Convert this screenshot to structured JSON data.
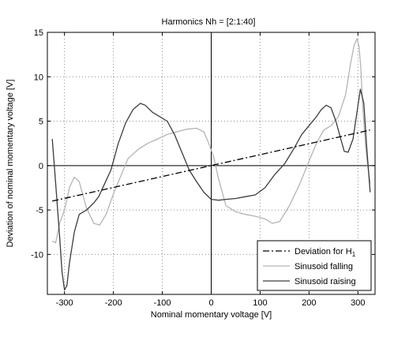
{
  "chart_data": {
    "type": "line",
    "title": "Harmonics Nh = [2:1:40]",
    "xlabel": "Nominal momentary voltage [V]",
    "ylabel": "Deviation of nominal momentary voltage [V]",
    "xlim": [
      -335,
      335
    ],
    "ylim": [
      -14.5,
      15
    ],
    "xticks": [
      -300,
      -200,
      -100,
      0,
      100,
      200,
      300
    ],
    "yticks": [
      -10,
      -5,
      0,
      5,
      10,
      15
    ],
    "grid": true,
    "legend_position": "bottom-right",
    "series": [
      {
        "name": "Deviation for H",
        "name_subscript": "1",
        "color": "#000000",
        "style": "dash-dot",
        "x": [
          -325,
          325
        ],
        "y": [
          -4,
          4
        ]
      },
      {
        "name": "Sinusoid falling",
        "color": "#b4b4b4",
        "style": "solid",
        "x": [
          -325,
          -318,
          -310,
          -300,
          -290,
          -280,
          -270,
          -255,
          -240,
          -228,
          -215,
          -200,
          -185,
          -170,
          -150,
          -130,
          -110,
          -90,
          -70,
          -50,
          -30,
          -15,
          -5,
          5,
          15,
          30,
          50,
          70,
          90,
          110,
          125,
          140,
          160,
          180,
          200,
          215,
          230,
          245,
          260,
          275,
          285,
          292,
          298,
          302,
          306,
          310,
          316,
          320,
          325
        ],
        "y": [
          -8.5,
          -8.7,
          -6.5,
          -5,
          -2.5,
          -1.3,
          -1.8,
          -4.8,
          -6.5,
          -6.7,
          -5.5,
          -3.2,
          -1.2,
          0.8,
          1.8,
          2.5,
          3,
          3.5,
          3.8,
          4.1,
          4.2,
          3.8,
          2.5,
          1,
          -1.5,
          -4.5,
          -5.2,
          -5.5,
          -5.7,
          -6,
          -6.5,
          -6.3,
          -4.5,
          -2.2,
          0.5,
          2.5,
          4,
          4.5,
          5.5,
          8,
          11.5,
          13.5,
          14.3,
          13.5,
          11,
          6.5,
          2,
          0,
          -2
        ]
      },
      {
        "name": "Sinusoid raising",
        "color": "#3c3c3c",
        "style": "solid",
        "x": [
          -325,
          -318,
          -310,
          -305,
          -300,
          -295,
          -290,
          -280,
          -270,
          -255,
          -240,
          -230,
          -220,
          -205,
          -190,
          -175,
          -160,
          -145,
          -135,
          -120,
          -105,
          -90,
          -75,
          -60,
          -45,
          -30,
          -15,
          0,
          15,
          30,
          50,
          70,
          90,
          110,
          130,
          150,
          170,
          185,
          200,
          215,
          225,
          235,
          245,
          255,
          265,
          272,
          280,
          290,
          298,
          305,
          312,
          318,
          325
        ],
        "y": [
          3,
          -2,
          -8,
          -12,
          -14,
          -13.5,
          -11,
          -7.5,
          -5.5,
          -5,
          -4.2,
          -3.5,
          -2.3,
          -0.5,
          2.5,
          4.8,
          6.3,
          7,
          6.8,
          6,
          5.5,
          5,
          3.5,
          1.5,
          -0.5,
          -1.8,
          -3,
          -3.8,
          -3.9,
          -3.8,
          -3.7,
          -3.5,
          -3.3,
          -2.5,
          -1,
          0.2,
          2,
          3.5,
          4.5,
          5.5,
          6.3,
          6.8,
          6.5,
          5,
          3,
          1.6,
          1.5,
          3,
          6,
          8.6,
          7,
          2,
          -3
        ]
      }
    ]
  }
}
